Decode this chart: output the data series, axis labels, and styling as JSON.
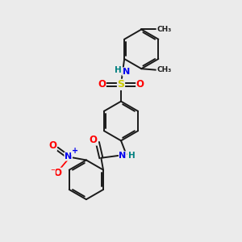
{
  "background_color": "#ebebeb",
  "bond_color": "#1a1a1a",
  "bond_width": 1.4,
  "colors": {
    "N": "#0000ee",
    "O": "#ff0000",
    "S": "#cccc00",
    "H": "#008080",
    "C": "#1a1a1a"
  },
  "figsize": [
    3.0,
    3.0
  ],
  "dpi": 100
}
